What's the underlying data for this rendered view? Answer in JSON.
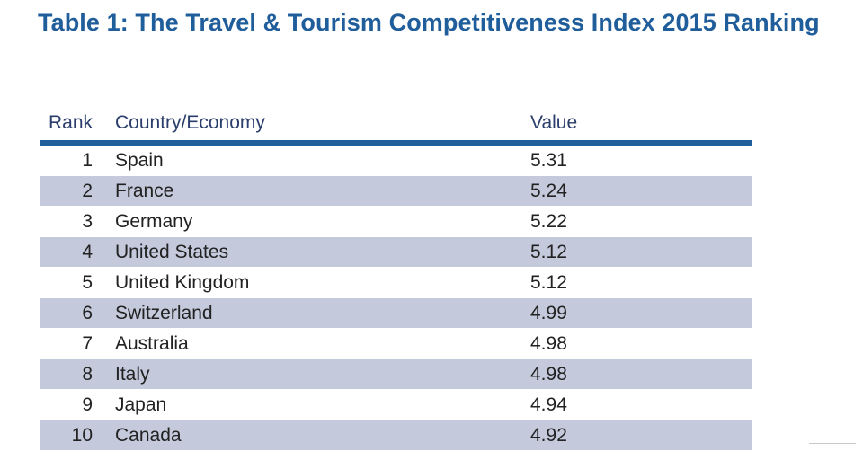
{
  "title": "Table 1: The Travel & Tourism Competitiveness Index 2015 Ranking",
  "table": {
    "headers": {
      "rank": "Rank",
      "country": "Country/Economy",
      "value": "Value"
    },
    "rows": [
      {
        "rank": "1",
        "country": "Spain",
        "value": "5.31"
      },
      {
        "rank": "2",
        "country": "France",
        "value": "5.24"
      },
      {
        "rank": "3",
        "country": "Germany",
        "value": "5.22"
      },
      {
        "rank": "4",
        "country": "United States",
        "value": "5.12"
      },
      {
        "rank": "5",
        "country": "United Kingdom",
        "value": "5.12"
      },
      {
        "rank": "6",
        "country": "Switzerland",
        "value": "4.99"
      },
      {
        "rank": "7",
        "country": "Australia",
        "value": "4.98"
      },
      {
        "rank": "8",
        "country": "Italy",
        "value": "4.98"
      },
      {
        "rank": "9",
        "country": "Japan",
        "value": "4.94"
      },
      {
        "rank": "10",
        "country": "Canada",
        "value": "4.92"
      }
    ]
  },
  "colors": {
    "title": "#1f5d9b",
    "header_rule": "#1f5d9b",
    "row_shade": "#c4cadb"
  }
}
